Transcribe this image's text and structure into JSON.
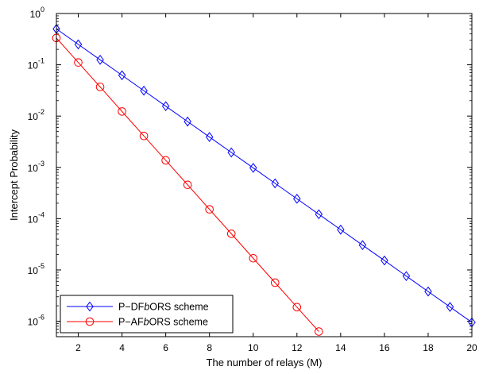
{
  "chart_data": {
    "type": "line",
    "xlabel": "The number of relays (M)",
    "ylabel": "Intercept Probability",
    "x": [
      1,
      2,
      3,
      4,
      5,
      6,
      7,
      8,
      9,
      10,
      11,
      12,
      13,
      14,
      15,
      16,
      17,
      18,
      19,
      20
    ],
    "xlim": [
      1,
      20
    ],
    "ylim": [
      5e-07,
      1
    ],
    "yscale": "log",
    "xticks": [
      2,
      4,
      6,
      8,
      10,
      12,
      14,
      16,
      18,
      20
    ],
    "yticks": [
      {
        "exp": "-6",
        "value": 1e-06
      },
      {
        "exp": "-5",
        "value": 1e-05
      },
      {
        "exp": "-4",
        "value": 0.0001
      },
      {
        "exp": "-3",
        "value": 0.001
      },
      {
        "exp": "-2",
        "value": 0.01
      },
      {
        "exp": "-1",
        "value": 0.1
      },
      {
        "exp": "0",
        "value": 1
      }
    ],
    "ytick_base": "10",
    "grid": false,
    "legend_position": "bottom-left",
    "series": [
      {
        "name": "P−DFbORS scheme",
        "name_parts": [
          "P−DF",
          "b",
          "ORS scheme"
        ],
        "color": "#0000ff",
        "marker": "diamond",
        "x": [
          1,
          2,
          3,
          4,
          5,
          6,
          7,
          8,
          9,
          10,
          11,
          12,
          13,
          14,
          15,
          16,
          17,
          18,
          19,
          20
        ],
        "values": [
          0.5,
          0.25,
          0.125,
          0.0625,
          0.03125,
          0.015625,
          0.0078125,
          0.00390625,
          0.001953,
          0.000977,
          0.000488,
          0.000244,
          0.000122,
          6.1e-05,
          3.05e-05,
          1.53e-05,
          7.6e-06,
          3.8e-06,
          1.9e-06,
          9.5e-07
        ]
      },
      {
        "name": "P−AFbORS scheme",
        "name_parts": [
          "P−AF",
          "b",
          "ORS scheme"
        ],
        "color": "#ff0000",
        "marker": "circle",
        "x": [
          1,
          2,
          3,
          4,
          5,
          6,
          7,
          8,
          9,
          10,
          11,
          12,
          13
        ],
        "values": [
          0.333,
          0.111,
          0.037,
          0.0123,
          0.0041,
          0.00137,
          0.000457,
          0.000152,
          5.08e-05,
          1.69e-05,
          5.65e-06,
          1.88e-06,
          6.3e-07
        ]
      }
    ]
  }
}
